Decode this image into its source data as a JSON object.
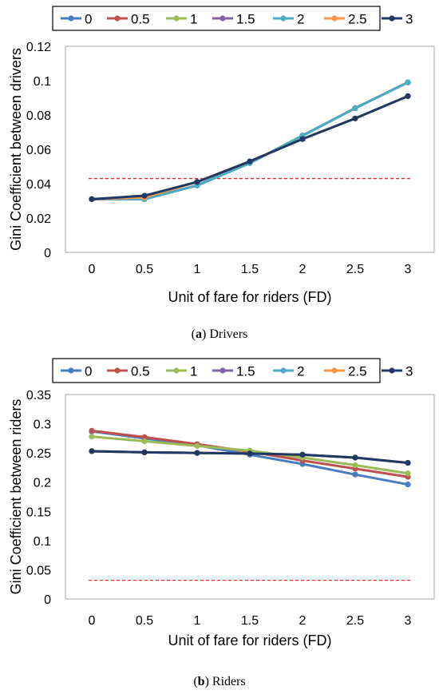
{
  "chart_data": [
    {
      "type": "line",
      "xlabel": "Unit of fare for riders (FD)",
      "ylabel": "Gini Coefficient between drivers",
      "x": [
        "0",
        "0.5",
        "1",
        "1.5",
        "2",
        "2.5",
        "3"
      ],
      "ylim": [
        0,
        0.12
      ],
      "yticks": [
        "0",
        "0.02",
        "0.04",
        "0.06",
        "0.08",
        "0.1",
        "0.12"
      ],
      "grid": false,
      "legend_position": "top",
      "reference_line": {
        "value": 0.043,
        "style": "dashed",
        "color": "#e0302b"
      },
      "series": [
        {
          "name": "0",
          "color": "#4a7cc2",
          "values": [
            0.031,
            0.031,
            0.039,
            0.052,
            0.068,
            0.084,
            0.099
          ]
        },
        {
          "name": "0.5",
          "color": "#c0504d",
          "values": [
            0.031,
            0.031,
            0.039,
            0.052,
            0.068,
            0.084,
            0.099
          ]
        },
        {
          "name": "1",
          "color": "#9bbb59",
          "values": [
            0.031,
            0.031,
            0.039,
            0.052,
            0.068,
            0.084,
            0.099
          ]
        },
        {
          "name": "1.5",
          "color": "#8064a2",
          "values": [
            0.031,
            0.031,
            0.039,
            0.052,
            0.068,
            0.084,
            0.099
          ]
        },
        {
          "name": "2",
          "color": "#4bacc6",
          "values": [
            0.031,
            0.031,
            0.039,
            0.052,
            0.068,
            0.084,
            0.099
          ]
        },
        {
          "name": "2.5",
          "color": "#f79646",
          "values": [
            0.031,
            0.032,
            0.041,
            0.053,
            0.066,
            0.078,
            0.091
          ]
        },
        {
          "name": "3",
          "color": "#1f3864",
          "values": [
            0.031,
            0.033,
            0.041,
            0.053,
            0.066,
            0.078,
            0.091
          ]
        }
      ]
    },
    {
      "type": "line",
      "xlabel": "Unit of fare for riders (FD)",
      "ylabel": "Gini Coefficient between riders",
      "x": [
        "0",
        "0.5",
        "1",
        "1.5",
        "2",
        "2.5",
        "3"
      ],
      "ylim": [
        0,
        0.35
      ],
      "yticks": [
        "0",
        "0.05",
        "0.1",
        "0.15",
        "0.2",
        "0.25",
        "0.3",
        "0.35"
      ],
      "grid": false,
      "legend_position": "top",
      "reference_line": {
        "value": 0.032,
        "style": "dashed",
        "color": "#e0302b"
      },
      "series": [
        {
          "name": "0",
          "color": "#4a7cc2",
          "values": [
            0.287,
            0.275,
            0.263,
            0.247,
            0.231,
            0.213,
            0.196
          ]
        },
        {
          "name": "0.5",
          "color": "#c0504d",
          "values": [
            0.288,
            0.277,
            0.265,
            0.252,
            0.237,
            0.223,
            0.209
          ]
        },
        {
          "name": "1",
          "color": "#9bbb59",
          "values": [
            0.278,
            0.27,
            0.262,
            0.254,
            0.242,
            0.229,
            0.215
          ]
        },
        {
          "name": "1.5",
          "color": "#8064a2",
          "values": [
            0.253,
            0.251,
            0.25,
            0.249,
            0.247,
            0.242,
            0.233
          ]
        },
        {
          "name": "2",
          "color": "#4bacc6",
          "values": [
            0.253,
            0.251,
            0.25,
            0.249,
            0.247,
            0.242,
            0.233
          ]
        },
        {
          "name": "2.5",
          "color": "#f79646",
          "values": [
            0.253,
            0.251,
            0.25,
            0.249,
            0.247,
            0.242,
            0.233
          ]
        },
        {
          "name": "3",
          "color": "#1f3864",
          "values": [
            0.253,
            0.251,
            0.25,
            0.249,
            0.247,
            0.242,
            0.233
          ]
        }
      ]
    }
  ],
  "captions": [
    {
      "label": "(a)",
      "text": "Drivers"
    },
    {
      "label": "(b)",
      "text": "Riders"
    }
  ]
}
